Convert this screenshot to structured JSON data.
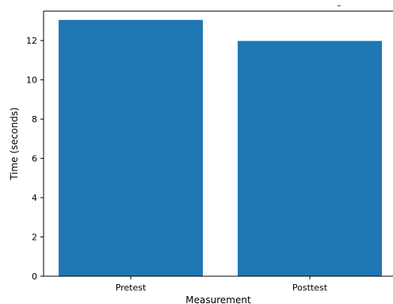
{
  "chart_data": {
    "type": "bar",
    "categories": [
      "Pretest",
      "Posttest"
    ],
    "values": [
      13.05,
      11.98
    ],
    "xlabel": "Measurement",
    "ylabel": "Time (seconds)",
    "ylim": [
      0,
      13.5
    ],
    "yticks": [
      0,
      2,
      4,
      6,
      8,
      10,
      12
    ],
    "grid": false,
    "bar_color": "#1f77b4",
    "annotation": "–"
  }
}
